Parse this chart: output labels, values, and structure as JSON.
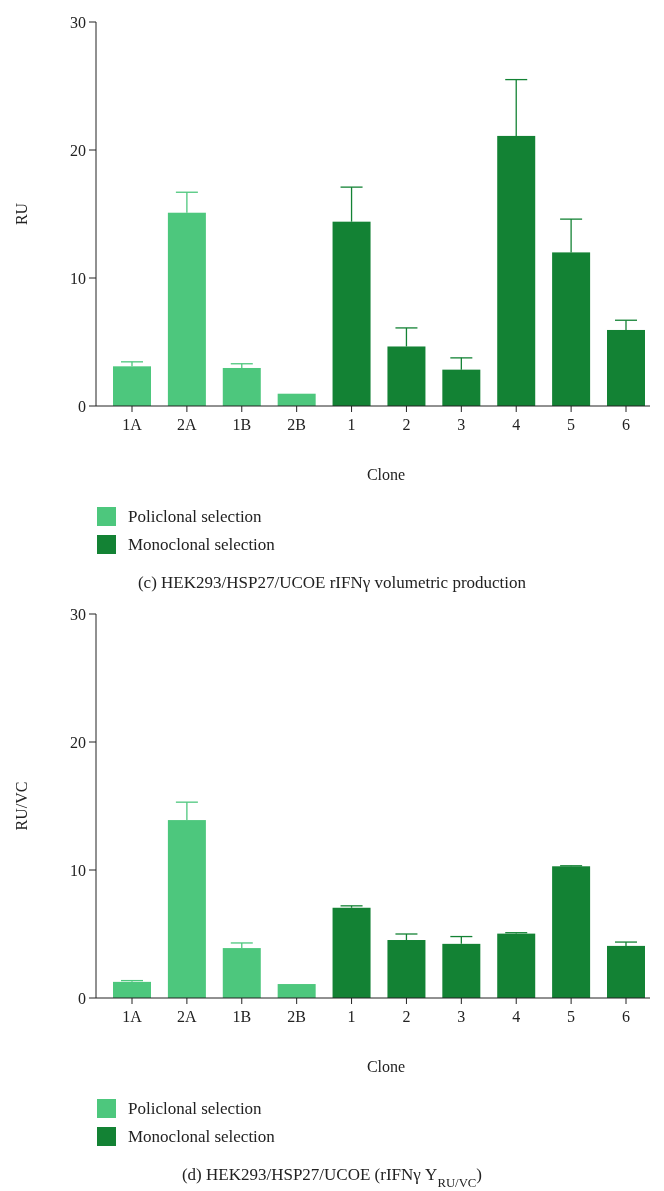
{
  "chart_data": [
    {
      "type": "bar",
      "ylabel": "RU",
      "xlabel": "Clone",
      "title": "(c) HEK293/HSP27/UCOE rIFNγ volumetric production",
      "categories": [
        "1A",
        "2A",
        "1B",
        "2B",
        "1",
        "2",
        "3",
        "4",
        "5",
        "6"
      ],
      "ylim": [
        0,
        30
      ],
      "yticks": [
        0,
        10,
        20,
        30
      ],
      "legend": "bottom",
      "grid": false,
      "series": [
        {
          "name": "Policlonal selection",
          "color": "#4dc77d",
          "values": [
            3.1,
            15.1,
            2.97,
            0.96,
            null,
            null,
            null,
            null,
            null,
            null
          ],
          "errors": [
            [
              3.1,
              3.45
            ],
            [
              15.1,
              16.7
            ],
            [
              2.97,
              3.3
            ],
            null,
            null,
            null,
            null,
            null,
            null,
            null
          ]
        },
        {
          "name": "Monoclonal selection",
          "color": "#138234",
          "values": [
            null,
            null,
            null,
            null,
            14.4,
            4.65,
            2.84,
            21.1,
            12.0,
            5.94
          ],
          "errors": [
            null,
            null,
            null,
            null,
            [
              14.4,
              17.1
            ],
            [
              4.65,
              6.1
            ],
            [
              2.84,
              3.76
            ],
            [
              21.1,
              25.5
            ],
            [
              12.0,
              14.6
            ],
            [
              5.94,
              6.7
            ]
          ]
        }
      ]
    },
    {
      "type": "bar",
      "ylabel": "RU/VC",
      "xlabel": "Clone",
      "title": "(d) HEK293/HSP27/UCOE (rIFNγ Y$_{RU/VC}$)",
      "categories": [
        "1A",
        "2A",
        "1B",
        "2B",
        "1",
        "2",
        "3",
        "4",
        "5",
        "6"
      ],
      "ylim": [
        0,
        30
      ],
      "yticks": [
        0,
        10,
        20,
        30
      ],
      "legend": "bottom",
      "grid": false,
      "series": [
        {
          "name": "Policlonal selection",
          "color": "#4dc77d",
          "values": [
            1.26,
            13.9,
            3.9,
            1.09,
            null,
            null,
            null,
            null,
            null,
            null
          ],
          "errors": [
            [
              1.26,
              1.36
            ],
            [
              13.9,
              15.3
            ],
            [
              3.9,
              4.3
            ],
            null,
            null,
            null,
            null,
            null,
            null,
            null
          ]
        },
        {
          "name": "Monoclonal selection",
          "color": "#138234",
          "values": [
            null,
            null,
            null,
            null,
            7.05,
            4.53,
            4.23,
            5.03,
            10.29,
            4.07
          ],
          "errors": [
            null,
            null,
            null,
            null,
            [
              7.05,
              7.2
            ],
            [
              4.53,
              5.0
            ],
            [
              4.23,
              4.8
            ],
            [
              5.03,
              5.1
            ],
            [
              10.29,
              10.33
            ],
            [
              4.07,
              4.37
            ]
          ]
        }
      ]
    }
  ]
}
